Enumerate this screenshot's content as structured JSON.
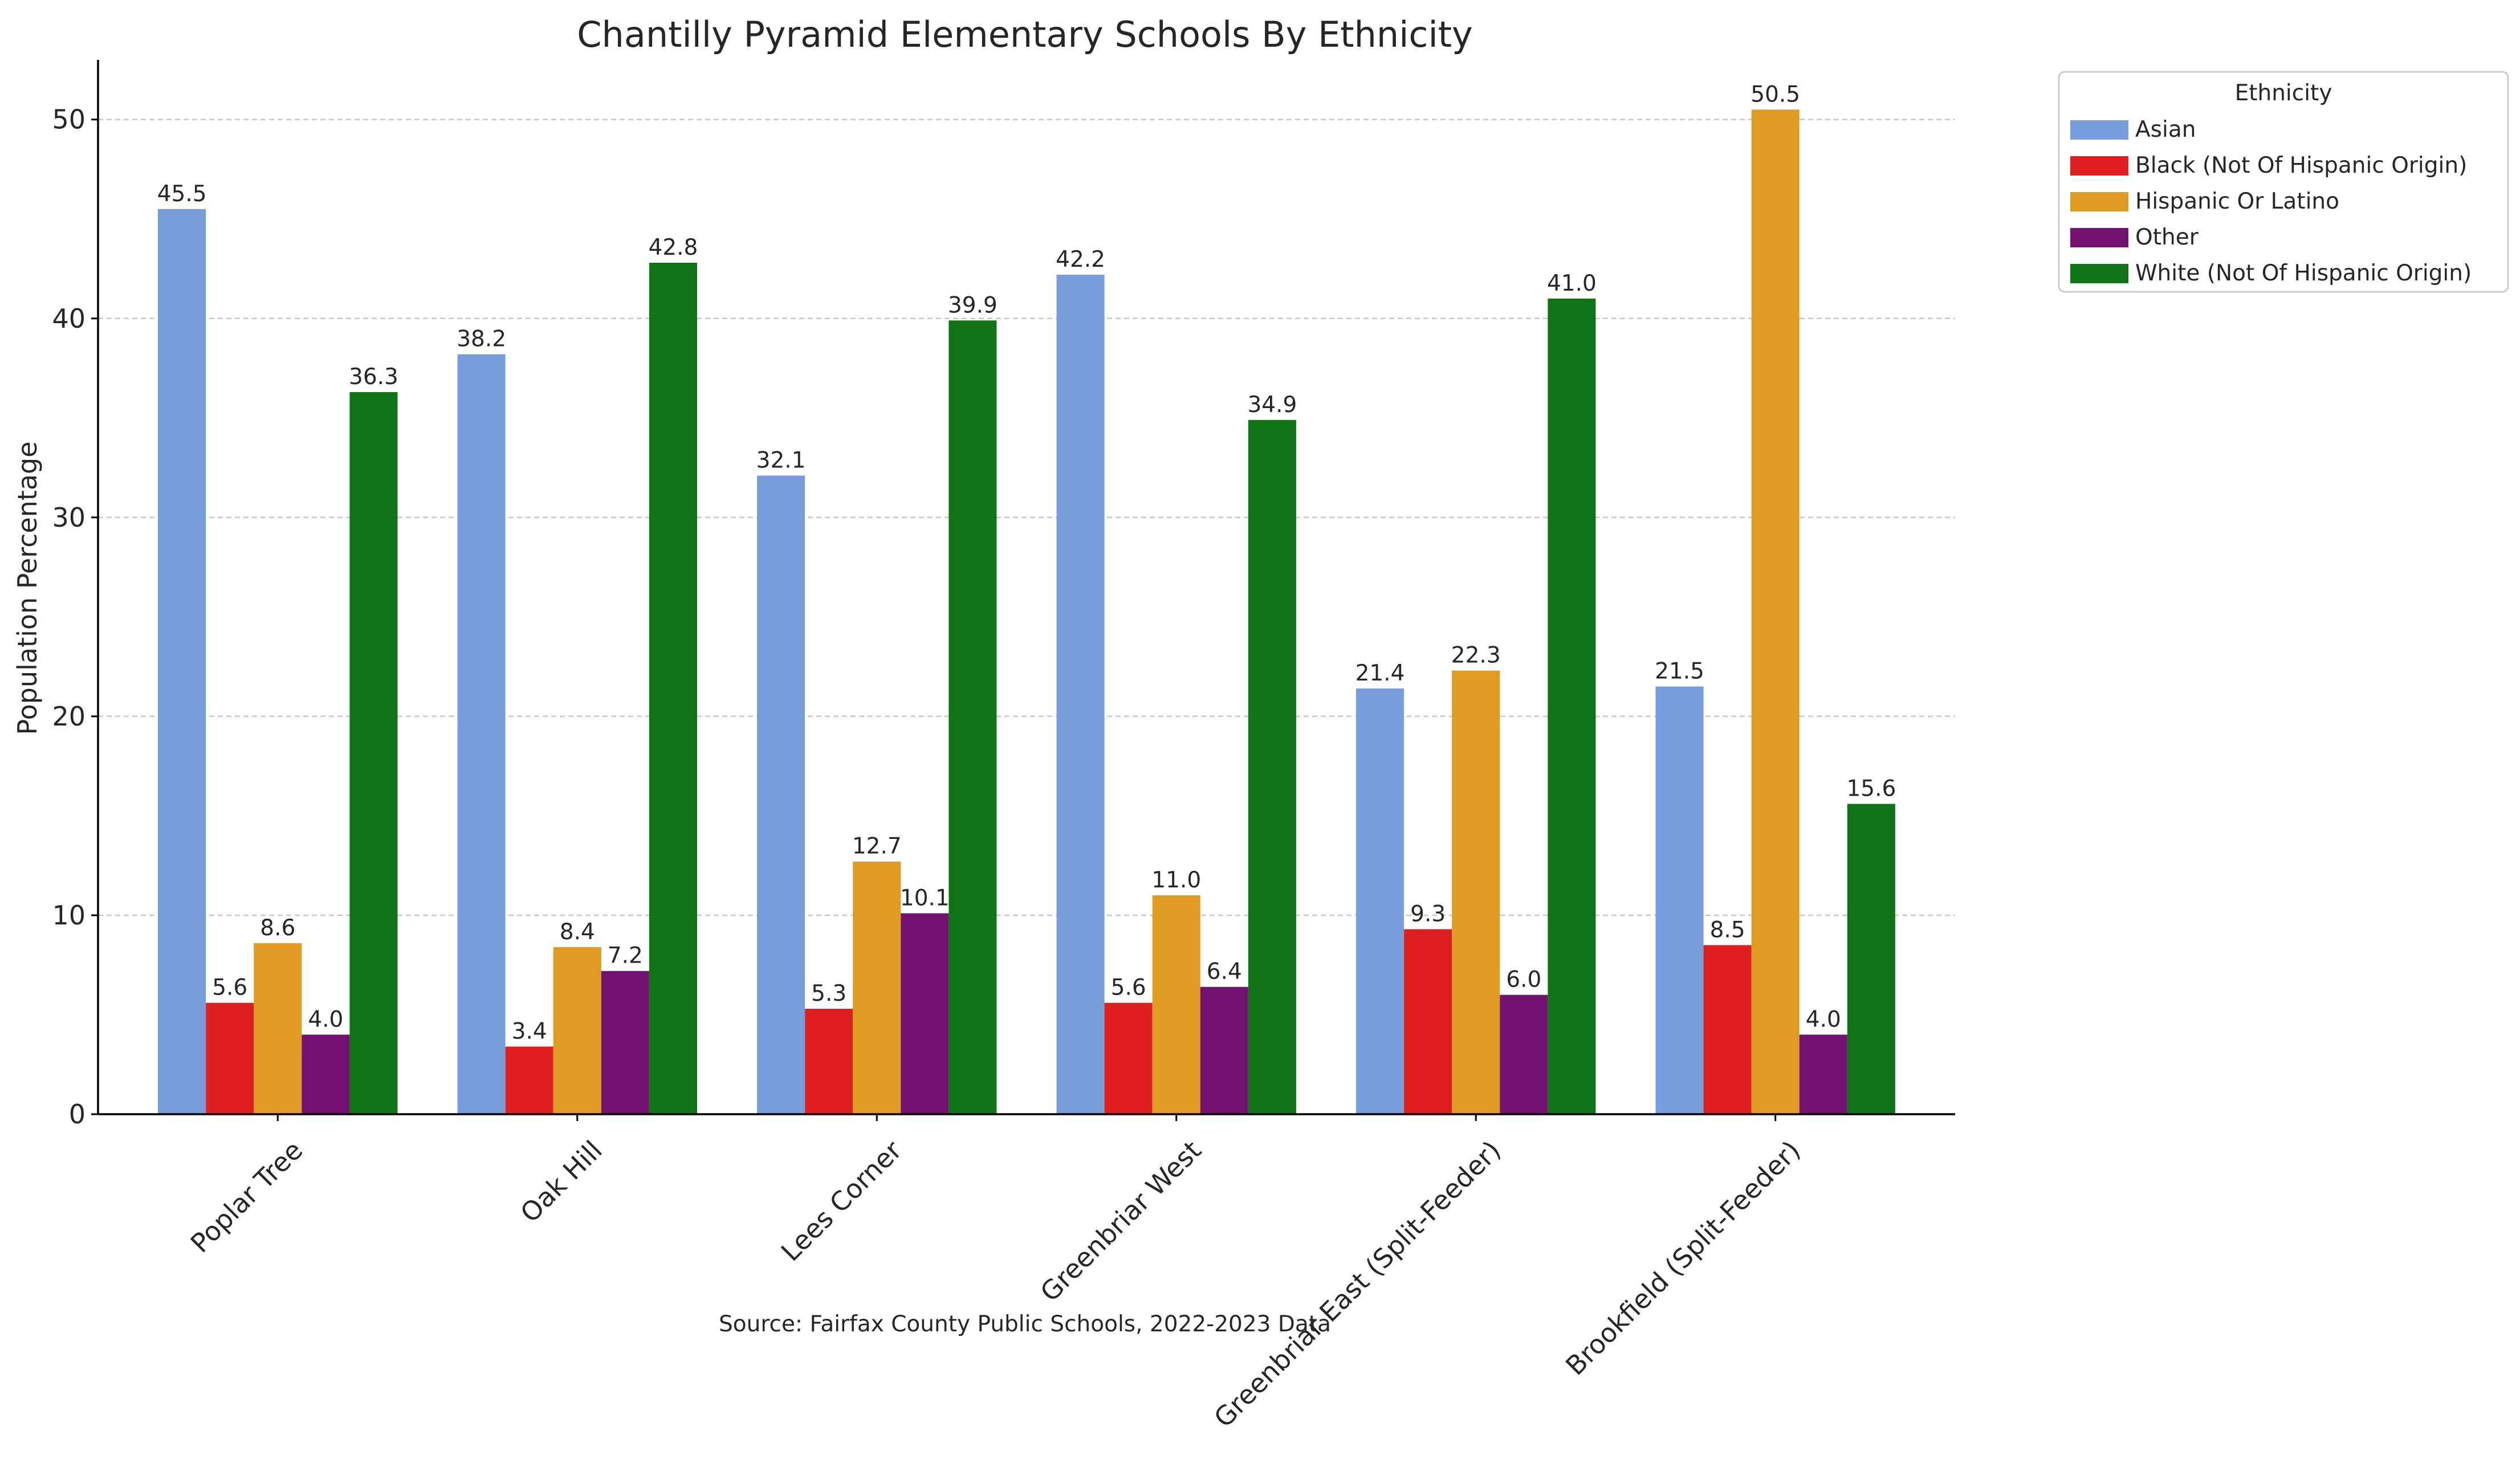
{
  "chart_data": {
    "type": "bar",
    "title": "Chantilly Pyramid Elementary Schools By Ethnicity",
    "ylabel": "Population Percentage",
    "xlabel": "",
    "ylim": [
      0,
      53
    ],
    "yticks": [
      0,
      10,
      20,
      30,
      40,
      50
    ],
    "grid": true,
    "categories": [
      "Poplar Tree",
      "Oak Hill",
      "Lees Corner",
      "Greenbriar West",
      "Greenbriar East (Split-Feeder)",
      "Brookfield (Split-Feeder)"
    ],
    "series": [
      {
        "name": "Asian",
        "color": "#779ddd",
        "values": [
          45.5,
          38.2,
          32.1,
          42.2,
          21.4,
          21.5
        ]
      },
      {
        "name": "Black (Not Of Hispanic Origin)",
        "color": "#e02020",
        "values": [
          5.6,
          3.4,
          5.3,
          5.6,
          9.3,
          8.5
        ]
      },
      {
        "name": "Hispanic Or Latino",
        "color": "#e09b22",
        "values": [
          8.6,
          8.4,
          12.7,
          11.0,
          22.3,
          50.5
        ]
      },
      {
        "name": "Other",
        "color": "#731170",
        "values": [
          4.0,
          7.2,
          10.1,
          6.4,
          6.0,
          4.0
        ]
      },
      {
        "name": "White (Not Of Hispanic Origin)",
        "color": "#0f7415",
        "values": [
          36.3,
          42.8,
          39.9,
          34.9,
          41.0,
          15.6
        ]
      }
    ],
    "legend": {
      "title": "Ethnicity",
      "placement": "outside-top-right"
    },
    "source_note": "Source: Fairfax County Public Schools, 2022-2023 Data"
  }
}
